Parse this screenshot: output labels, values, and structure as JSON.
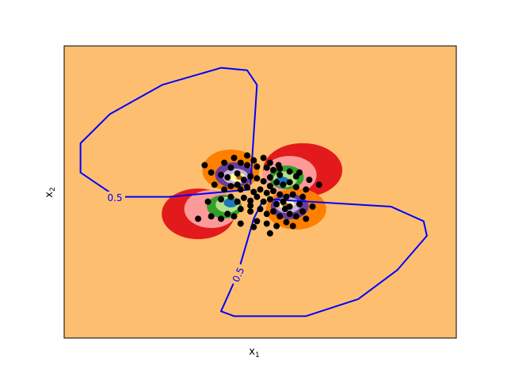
{
  "chart_data": {
    "type": "contour-scatter",
    "title": "",
    "xlabel": "x",
    "xlabel_sub": "1",
    "ylabel": "x",
    "ylabel_sub": "2",
    "xlim": [
      -3,
      3
    ],
    "ylim": [
      -3,
      3
    ],
    "background_color": "#fdbf6f",
    "region_colors": [
      "#e31a1c",
      "#fb9a99",
      "#ff7f00",
      "#33a02c",
      "#b2df8a",
      "#1f78b4",
      "#a6cee3",
      "#6a3d9a",
      "#cab2d6",
      "#ffff99",
      "#b15928"
    ],
    "decision_contour": {
      "level_label": "0.5",
      "color": "#0000ff",
      "arms": [
        [
          [
            -0.15,
            0.15
          ],
          [
            -0.05,
            2.2
          ],
          [
            -0.2,
            2.5
          ],
          [
            -0.6,
            2.55
          ],
          [
            -1.5,
            2.2
          ],
          [
            -2.3,
            1.6
          ],
          [
            -2.75,
            1.0
          ],
          [
            -2.75,
            0.4
          ],
          [
            -2.2,
            -0.1
          ],
          [
            -1.4,
            -0.1
          ],
          [
            -0.15,
            0.05
          ]
        ],
        [
          [
            0.15,
            -0.15
          ],
          [
            2.0,
            -0.3
          ],
          [
            2.5,
            -0.6
          ],
          [
            2.55,
            -0.9
          ],
          [
            2.1,
            -1.6
          ],
          [
            1.5,
            -2.2
          ],
          [
            0.7,
            -2.55
          ],
          [
            -0.4,
            -2.55
          ],
          [
            -0.6,
            -2.45
          ],
          [
            -0.35,
            -1.7
          ],
          [
            -0.1,
            -0.55
          ],
          [
            0.05,
            -0.15
          ]
        ]
      ]
    },
    "scatter_color": "#000000",
    "scatter_points": [
      [
        -0.85,
        0.55
      ],
      [
        -0.4,
        0.7
      ],
      [
        -0.3,
        0.6
      ],
      [
        -0.2,
        0.55
      ],
      [
        -0.05,
        0.52
      ],
      [
        0.1,
        0.5
      ],
      [
        0.2,
        0.45
      ],
      [
        0.3,
        0.48
      ],
      [
        0.45,
        0.42
      ],
      [
        0.55,
        0.32
      ],
      [
        -0.6,
        0.35
      ],
      [
        -0.5,
        0.3
      ],
      [
        -0.35,
        0.38
      ],
      [
        -0.25,
        0.25
      ],
      [
        -0.15,
        0.32
      ],
      [
        -0.05,
        0.28
      ],
      [
        0.05,
        0.22
      ],
      [
        0.15,
        0.3
      ],
      [
        0.25,
        0.2
      ],
      [
        0.35,
        0.15
      ],
      [
        0.45,
        0.2
      ],
      [
        0.55,
        0.1
      ],
      [
        0.7,
        0.05
      ],
      [
        0.9,
        0.15
      ],
      [
        -0.7,
        0.15
      ],
      [
        -0.55,
        0.05
      ],
      [
        -0.45,
        0.12
      ],
      [
        -0.3,
        0.05
      ],
      [
        -0.2,
        0.1
      ],
      [
        -0.1,
        0.0
      ],
      [
        0.0,
        0.05
      ],
      [
        0.1,
        -0.02
      ],
      [
        0.2,
        0.02
      ],
      [
        0.3,
        -0.05
      ],
      [
        0.4,
        -0.1
      ],
      [
        0.5,
        -0.05
      ],
      [
        0.65,
        -0.1
      ],
      [
        -0.6,
        -0.15
      ],
      [
        -0.45,
        -0.1
      ],
      [
        -0.35,
        -0.2
      ],
      [
        -0.25,
        -0.12
      ],
      [
        -0.15,
        -0.18
      ],
      [
        -0.05,
        -0.1
      ],
      [
        0.05,
        -0.2
      ],
      [
        0.15,
        -0.15
      ],
      [
        0.25,
        -0.25
      ],
      [
        0.35,
        -0.2
      ],
      [
        0.45,
        -0.3
      ],
      [
        0.6,
        -0.25
      ],
      [
        -0.3,
        -0.35
      ],
      [
        -0.15,
        -0.4
      ],
      [
        0.0,
        -0.35
      ],
      [
        0.1,
        -0.45
      ],
      [
        0.2,
        -0.4
      ],
      [
        0.3,
        -0.5
      ],
      [
        0.45,
        -0.45
      ],
      [
        0.55,
        -0.5
      ],
      [
        0.65,
        -0.4
      ],
      [
        -0.5,
        -0.45
      ],
      [
        -0.4,
        -0.5
      ],
      [
        -0.6,
        -0.55
      ],
      [
        -0.75,
        -0.5
      ],
      [
        -0.95,
        -0.55
      ],
      [
        -0.05,
        -0.6
      ],
      [
        0.1,
        -0.65
      ],
      [
        0.25,
        -0.7
      ],
      [
        0.15,
        -0.85
      ],
      [
        -0.1,
        -0.72
      ],
      [
        -0.3,
        -0.65
      ],
      [
        0.4,
        -0.62
      ],
      [
        0.5,
        -0.7
      ],
      [
        0.7,
        -0.55
      ],
      [
        -0.2,
        0.75
      ],
      [
        -0.1,
        0.65
      ],
      [
        0.05,
        0.7
      ],
      [
        0.28,
        0.55
      ],
      [
        -0.45,
        0.5
      ],
      [
        -0.55,
        0.6
      ],
      [
        -0.75,
        0.4
      ],
      [
        0.15,
        0.6
      ],
      [
        -0.35,
        0.15
      ],
      [
        0.15,
        0.12
      ],
      [
        0.3,
        0.35
      ],
      [
        -0.15,
        -0.28
      ],
      [
        0.38,
        -0.35
      ],
      [
        0.6,
        0.4
      ],
      [
        0.75,
        0.25
      ],
      [
        -0.8,
        -0.2
      ],
      [
        0.8,
        -0.3
      ]
    ]
  }
}
